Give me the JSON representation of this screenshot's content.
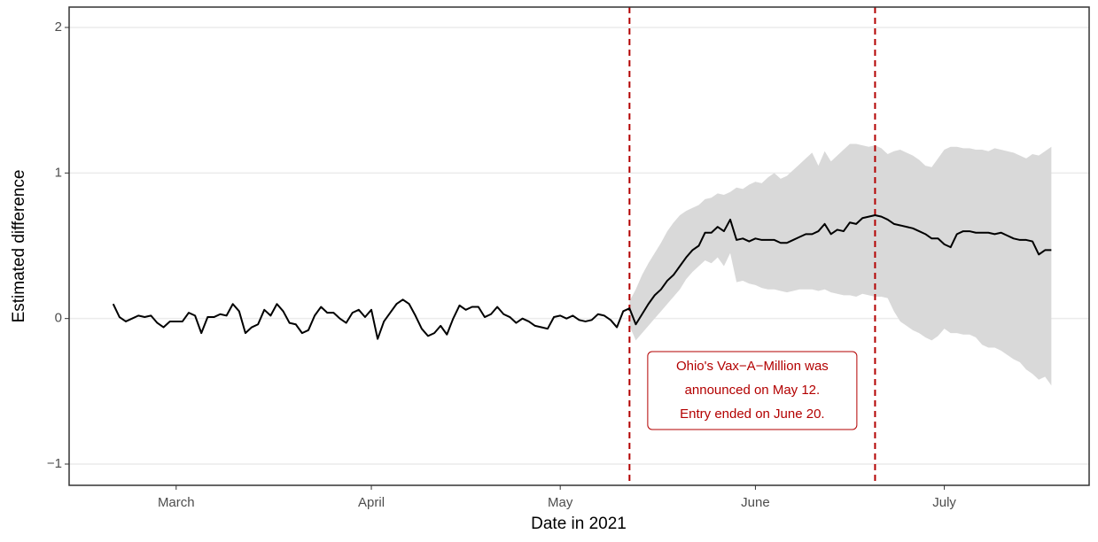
{
  "chart_data": {
    "type": "line",
    "xlabel": "Date in 2021",
    "ylabel": "Estimated difference",
    "annotation": [
      "Ohio's Vax−A−Million was",
      "announced on May 12.",
      "Entry ended on June 20."
    ],
    "vlines": [
      "2021-05-12",
      "2021-06-20"
    ],
    "vline_color": "#b30000",
    "color": "#000000",
    "band_color": "#d9d9d9",
    "xlim": [
      "2021-02-12",
      "2021-07-24"
    ],
    "xticks": [
      {
        "value": "2021-03-01",
        "label": "March"
      },
      {
        "value": "2021-04-01",
        "label": "April"
      },
      {
        "value": "2021-05-01",
        "label": "May"
      },
      {
        "value": "2021-06-01",
        "label": "June"
      },
      {
        "value": "2021-07-01",
        "label": "July"
      }
    ],
    "ylim": [
      -1.146,
      2.14
    ],
    "yticks": [
      {
        "value": -1,
        "label": "−1"
      },
      0,
      1,
      2
    ],
    "grid": true,
    "x": [
      "2021-02-19",
      "2021-02-20",
      "2021-02-21",
      "2021-02-22",
      "2021-02-23",
      "2021-02-24",
      "2021-02-25",
      "2021-02-26",
      "2021-02-27",
      "2021-02-28",
      "2021-03-01",
      "2021-03-02",
      "2021-03-03",
      "2021-03-04",
      "2021-03-05",
      "2021-03-06",
      "2021-03-07",
      "2021-03-08",
      "2021-03-09",
      "2021-03-10",
      "2021-03-11",
      "2021-03-12",
      "2021-03-13",
      "2021-03-14",
      "2021-03-15",
      "2021-03-16",
      "2021-03-17",
      "2021-03-18",
      "2021-03-19",
      "2021-03-20",
      "2021-03-21",
      "2021-03-22",
      "2021-03-23",
      "2021-03-24",
      "2021-03-25",
      "2021-03-26",
      "2021-03-27",
      "2021-03-28",
      "2021-03-29",
      "2021-03-30",
      "2021-03-31",
      "2021-04-01",
      "2021-04-02",
      "2021-04-03",
      "2021-04-04",
      "2021-04-05",
      "2021-04-06",
      "2021-04-07",
      "2021-04-08",
      "2021-04-09",
      "2021-04-10",
      "2021-04-11",
      "2021-04-12",
      "2021-04-13",
      "2021-04-14",
      "2021-04-15",
      "2021-04-16",
      "2021-04-17",
      "2021-04-18",
      "2021-04-19",
      "2021-04-20",
      "2021-04-21",
      "2021-04-22",
      "2021-04-23",
      "2021-04-24",
      "2021-04-25",
      "2021-04-26",
      "2021-04-27",
      "2021-04-28",
      "2021-04-29",
      "2021-04-30",
      "2021-05-01",
      "2021-05-02",
      "2021-05-03",
      "2021-05-04",
      "2021-05-05",
      "2021-05-06",
      "2021-05-07",
      "2021-05-08",
      "2021-05-09",
      "2021-05-10",
      "2021-05-11",
      "2021-05-12",
      "2021-05-13",
      "2021-05-14",
      "2021-05-15",
      "2021-05-16",
      "2021-05-17",
      "2021-05-18",
      "2021-05-19",
      "2021-05-20",
      "2021-05-21",
      "2021-05-22",
      "2021-05-23",
      "2021-05-24",
      "2021-05-25",
      "2021-05-26",
      "2021-05-27",
      "2021-05-28",
      "2021-05-29",
      "2021-05-30",
      "2021-05-31",
      "2021-06-01",
      "2021-06-02",
      "2021-06-03",
      "2021-06-04",
      "2021-06-05",
      "2021-06-06",
      "2021-06-07",
      "2021-06-08",
      "2021-06-09",
      "2021-06-10",
      "2021-06-11",
      "2021-06-12",
      "2021-06-13",
      "2021-06-14",
      "2021-06-15",
      "2021-06-16",
      "2021-06-17",
      "2021-06-18",
      "2021-06-19",
      "2021-06-20",
      "2021-06-21",
      "2021-06-22",
      "2021-06-23",
      "2021-06-24",
      "2021-06-25",
      "2021-06-26",
      "2021-06-27",
      "2021-06-28",
      "2021-06-29",
      "2021-06-30",
      "2021-07-01",
      "2021-07-02",
      "2021-07-03",
      "2021-07-04",
      "2021-07-05",
      "2021-07-06",
      "2021-07-07",
      "2021-07-08",
      "2021-07-09",
      "2021-07-10",
      "2021-07-11",
      "2021-07-12",
      "2021-07-13",
      "2021-07-14",
      "2021-07-15",
      "2021-07-16",
      "2021-07-17",
      "2021-07-18"
    ],
    "values": [
      0.1,
      0.01,
      -0.02,
      0,
      0.02,
      0.01,
      0.02,
      -0.03,
      -0.06,
      -0.02,
      -0.02,
      -0.02,
      0.04,
      0.02,
      -0.1,
      0.01,
      0.01,
      0.03,
      0.02,
      0.1,
      0.05,
      -0.1,
      -0.06,
      -0.04,
      0.06,
      0.02,
      0.1,
      0.05,
      -0.03,
      -0.04,
      -0.1,
      -0.08,
      0.02,
      0.08,
      0.04,
      0.04,
      0,
      -0.03,
      0.04,
      0.06,
      0.01,
      0.06,
      -0.14,
      -0.02,
      0.04,
      0.1,
      0.13,
      0.1,
      0.02,
      -0.07,
      -0.12,
      -0.1,
      -0.05,
      -0.11,
      0,
      0.09,
      0.06,
      0.08,
      0.08,
      0.01,
      0.03,
      0.08,
      0.03,
      0.01,
      -0.03,
      0,
      -0.02,
      -0.05,
      -0.06,
      -0.07,
      0.01,
      0.02,
      0,
      0.02,
      -0.01,
      -0.02,
      -0.01,
      0.03,
      0.02,
      -0.01,
      -0.06,
      0.05,
      0.07,
      -0.04,
      0.03,
      0.1,
      0.16,
      0.2,
      0.26,
      0.3,
      0.36,
      0.42,
      0.47,
      0.5,
      0.59,
      0.59,
      0.63,
      0.6,
      0.68,
      0.54,
      0.55,
      0.53,
      0.55,
      0.54,
      0.54,
      0.54,
      0.52,
      0.52,
      0.54,
      0.56,
      0.58,
      0.58,
      0.6,
      0.65,
      0.58,
      0.61,
      0.6,
      0.66,
      0.65,
      0.69,
      0.7,
      0.71,
      0.7,
      0.68,
      0.65,
      0.64,
      0.63,
      0.62,
      0.6,
      0.58,
      0.55,
      0.55,
      0.51,
      0.49,
      0.58,
      0.6,
      0.6,
      0.59,
      0.59,
      0.59,
      0.58,
      0.59,
      0.57,
      0.55,
      0.54,
      0.54,
      0.53,
      0.44,
      0.47,
      0.47
    ],
    "upper": [
      null,
      null,
      null,
      null,
      null,
      null,
      null,
      null,
      null,
      null,
      null,
      null,
      null,
      null,
      null,
      null,
      null,
      null,
      null,
      null,
      null,
      null,
      null,
      null,
      null,
      null,
      null,
      null,
      null,
      null,
      null,
      null,
      null,
      null,
      null,
      null,
      null,
      null,
      null,
      null,
      null,
      null,
      null,
      null,
      null,
      null,
      null,
      null,
      null,
      null,
      null,
      null,
      null,
      null,
      null,
      null,
      null,
      null,
      null,
      null,
      null,
      null,
      null,
      null,
      null,
      null,
      null,
      null,
      null,
      null,
      null,
      null,
      null,
      null,
      null,
      null,
      null,
      null,
      null,
      null,
      null,
      null,
      0.12,
      0.2,
      0.3,
      0.38,
      0.45,
      0.52,
      0.6,
      0.66,
      0.71,
      0.74,
      0.76,
      0.78,
      0.82,
      0.83,
      0.86,
      0.85,
      0.87,
      0.9,
      0.89,
      0.92,
      0.94,
      0.93,
      0.97,
      1.0,
      0.96,
      0.98,
      1.02,
      1.06,
      1.1,
      1.14,
      1.05,
      1.15,
      1.08,
      1.12,
      1.16,
      1.2,
      1.2,
      1.19,
      1.18,
      1.19,
      1.17,
      1.13,
      1.15,
      1.16,
      1.14,
      1.12,
      1.09,
      1.05,
      1.04,
      1.1,
      1.16,
      1.18,
      1.18,
      1.17,
      1.17,
      1.16,
      1.16,
      1.15,
      1.17,
      1.16,
      1.15,
      1.14,
      1.12,
      1.1,
      1.13,
      1.12,
      1.15,
      1.18
    ],
    "lower": [
      null,
      null,
      null,
      null,
      null,
      null,
      null,
      null,
      null,
      null,
      null,
      null,
      null,
      null,
      null,
      null,
      null,
      null,
      null,
      null,
      null,
      null,
      null,
      null,
      null,
      null,
      null,
      null,
      null,
      null,
      null,
      null,
      null,
      null,
      null,
      null,
      null,
      null,
      null,
      null,
      null,
      null,
      null,
      null,
      null,
      null,
      null,
      null,
      null,
      null,
      null,
      null,
      null,
      null,
      null,
      null,
      null,
      null,
      null,
      null,
      null,
      null,
      null,
      null,
      null,
      null,
      null,
      null,
      null,
      null,
      null,
      null,
      null,
      null,
      null,
      null,
      null,
      null,
      null,
      null,
      null,
      null,
      -0.05,
      -0.15,
      -0.1,
      -0.05,
      0,
      0.05,
      0.1,
      0.15,
      0.2,
      0.27,
      0.32,
      0.36,
      0.4,
      0.38,
      0.42,
      0.36,
      0.45,
      0.25,
      0.26,
      0.24,
      0.23,
      0.21,
      0.2,
      0.2,
      0.19,
      0.18,
      0.19,
      0.2,
      0.2,
      0.2,
      0.19,
      0.2,
      0.18,
      0.17,
      0.16,
      0.16,
      0.15,
      0.17,
      0.16,
      0.15,
      0.15,
      0.14,
      0.05,
      -0.02,
      -0.05,
      -0.08,
      -0.1,
      -0.13,
      -0.15,
      -0.12,
      -0.07,
      -0.1,
      -0.1,
      -0.11,
      -0.11,
      -0.13,
      -0.18,
      -0.2,
      -0.2,
      -0.22,
      -0.25,
      -0.28,
      -0.3,
      -0.35,
      -0.38,
      -0.42,
      -0.4,
      -0.46
    ]
  }
}
